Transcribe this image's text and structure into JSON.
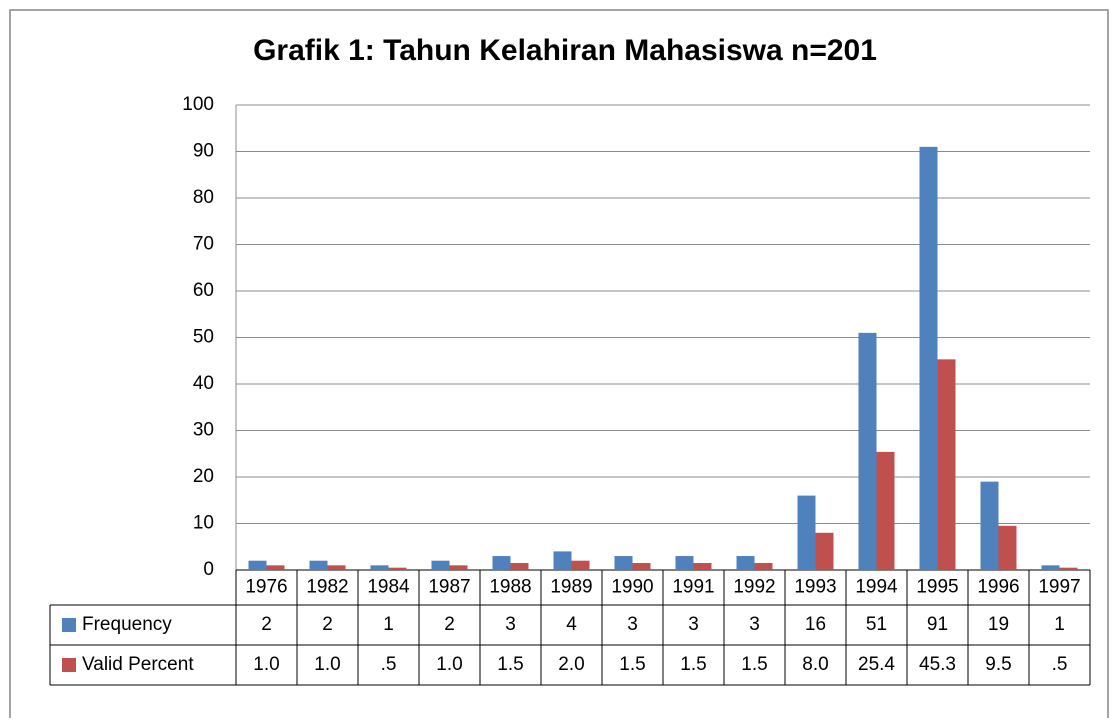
{
  "chart_data": {
    "type": "bar",
    "title": "Grafik 1: Tahun Kelahiran Mahasiswa n=201",
    "categories": [
      "1976",
      "1982",
      "1984",
      "1987",
      "1988",
      "1989",
      "1990",
      "1991",
      "1992",
      "1993",
      "1994",
      "1995",
      "1996",
      "1997"
    ],
    "series": [
      {
        "name": "Frequency",
        "color": "#4f81bd",
        "values": [
          2,
          2,
          1,
          2,
          3,
          4,
          3,
          3,
          3,
          16,
          51,
          91,
          19,
          1
        ]
      },
      {
        "name": "Valid Percent",
        "color": "#c0504d",
        "values": [
          1.0,
          1.0,
          0.5,
          1.0,
          1.5,
          2.0,
          1.5,
          1.5,
          1.5,
          8.0,
          25.4,
          45.3,
          9.5,
          0.5
        ],
        "value_labels": [
          "1.0",
          "1.0",
          ".5",
          "1.0",
          "1.5",
          "2.0",
          "1.5",
          "1.5",
          "1.5",
          "8.0",
          "25.4",
          "45.3",
          "9.5",
          ".5"
        ]
      }
    ],
    "ylim": [
      0,
      100
    ],
    "yticks": [
      0,
      10,
      20,
      30,
      40,
      50,
      60,
      70,
      80,
      90,
      100
    ],
    "grid": true
  }
}
